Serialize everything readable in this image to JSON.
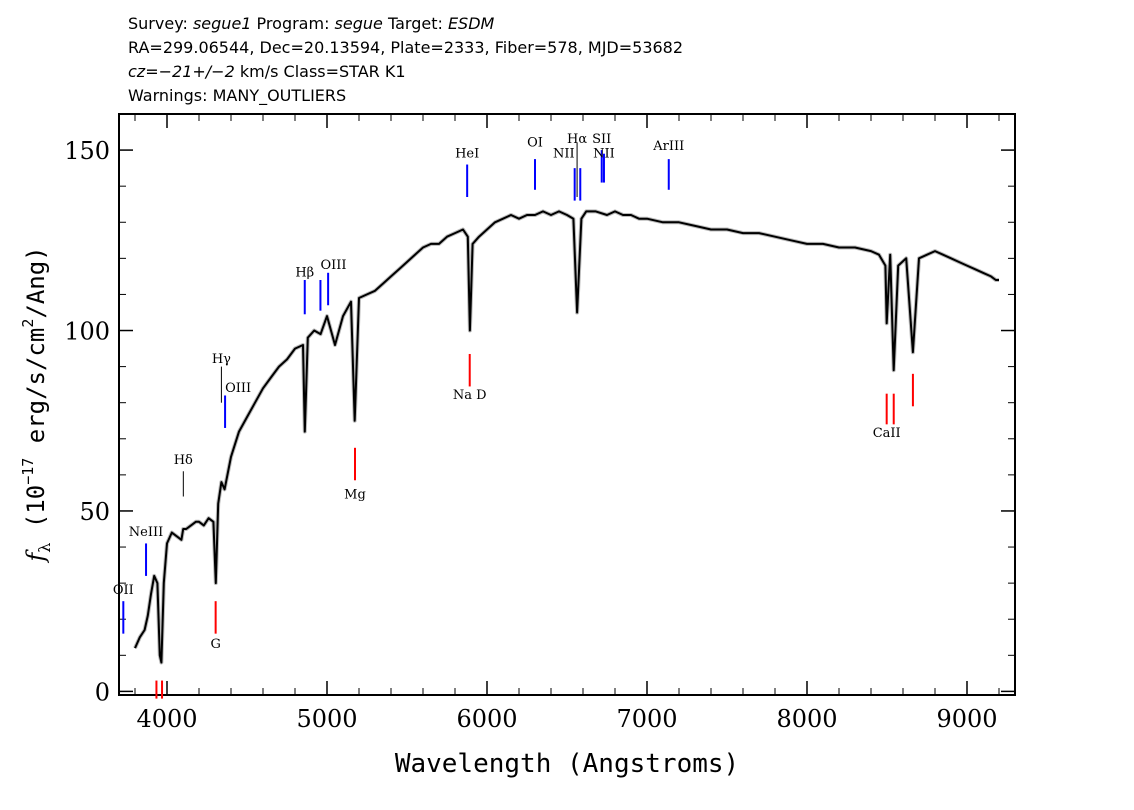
{
  "header": {
    "line1": {
      "survey_label": "Survey: ",
      "survey": "segue1",
      "program_label": " Program: ",
      "program": "segue",
      "target_label": " Target: ",
      "target": "ESDM"
    },
    "line2": "RA=299.06544, Dec=20.13594, Plate=2333, Fiber=578, MJD=53682",
    "line3": {
      "cz_label": "cz=",
      "cz_value": "−21+/−2",
      "cz_units": " km/s Class=STAR K1"
    },
    "line4": "Warnings: MANY_OUTLIERS"
  },
  "chart_data": {
    "type": "line",
    "xlabel": "Wavelength (Angstroms)",
    "ylabel": "fλ (10⁻¹⁷ erg/s/cm²/Ang)",
    "ylabel_parts": {
      "f": "f",
      "lambda": "λ",
      "pre": " (10",
      "exp1": "−17",
      "mid": " erg/s/cm",
      "exp2": "2",
      "post": "/Ang)"
    },
    "xlim": [
      3700,
      9300
    ],
    "ylim": [
      -1,
      160
    ],
    "xticks": [
      4000,
      5000,
      6000,
      7000,
      8000,
      9000
    ],
    "xtick_labels": [
      "4000",
      "5000",
      "6000",
      "7000",
      "8000",
      "9000"
    ],
    "yticks": [
      0,
      50,
      100,
      150
    ],
    "ytick_labels": [
      "0",
      "50",
      "100",
      "150"
    ],
    "grid": false,
    "series": [
      {
        "color": "#000000",
        "x": [
          3800,
          3830,
          3860,
          3880,
          3900,
          3920,
          3940,
          3955,
          3965,
          3980,
          4000,
          4030,
          4060,
          4090,
          4101,
          4120,
          4150,
          4180,
          4200,
          4230,
          4260,
          4290,
          4305,
          4320,
          4340,
          4360,
          4400,
          4450,
          4500,
          4550,
          4600,
          4650,
          4700,
          4750,
          4800,
          4850,
          4861,
          4880,
          4920,
          4960,
          5000,
          5050,
          5100,
          5150,
          5173,
          5200,
          5250,
          5300,
          5350,
          5400,
          5450,
          5500,
          5550,
          5600,
          5650,
          5700,
          5750,
          5800,
          5850,
          5880,
          5893,
          5910,
          5950,
          6000,
          6050,
          6100,
          6150,
          6200,
          6250,
          6300,
          6350,
          6400,
          6450,
          6500,
          6540,
          6563,
          6590,
          6620,
          6680,
          6750,
          6800,
          6850,
          6900,
          6950,
          7000,
          7100,
          7200,
          7300,
          7400,
          7500,
          7600,
          7700,
          7800,
          7900,
          8000,
          8100,
          8200,
          8300,
          8400,
          8450,
          8490,
          8498,
          8520,
          8542,
          8570,
          8620,
          8662,
          8700,
          8750,
          8800,
          8850,
          8900,
          8950,
          9000,
          9050,
          9100,
          9150,
          9180,
          9200
        ],
        "y": [
          12,
          15,
          17,
          21,
          27,
          32,
          30,
          10,
          8,
          30,
          41,
          44,
          43,
          42,
          45,
          45,
          46,
          47,
          47,
          46,
          48,
          47,
          30,
          52,
          58,
          56,
          65,
          72,
          76,
          80,
          84,
          87,
          90,
          92,
          95,
          96,
          72,
          98,
          100,
          99,
          104,
          96,
          104,
          108,
          75,
          109,
          110,
          111,
          113,
          115,
          117,
          119,
          121,
          123,
          124,
          124,
          126,
          127,
          128,
          126,
          100,
          124,
          126,
          128,
          130,
          131,
          132,
          131,
          132,
          132,
          133,
          132,
          133,
          132,
          131,
          105,
          131,
          133,
          133,
          132,
          133,
          132,
          132,
          131,
          131,
          130,
          130,
          129,
          128,
          128,
          127,
          127,
          126,
          125,
          124,
          124,
          123,
          123,
          122,
          121,
          118,
          102,
          121,
          89,
          118,
          120,
          94,
          120,
          121,
          122,
          121,
          120,
          119,
          118,
          117,
          116,
          115,
          114,
          114
        ]
      }
    ],
    "annotations": [
      {
        "label": "OII",
        "x": 3727,
        "color": "#0000ff",
        "y_top": 25,
        "y_bottom": 16,
        "label_y": 27,
        "label_anchor": "middle"
      },
      {
        "label": "NeIII",
        "x": 3869,
        "color": "#0000ff",
        "y_top": 41,
        "y_bottom": 32,
        "label_y": 43,
        "label_anchor": "middle"
      },
      {
        "label": "Hδ",
        "x": 4102,
        "color": "#000000",
        "y_top": 61,
        "y_bottom": 54,
        "label_y": 63,
        "label_anchor": "middle"
      },
      {
        "label": "Hγ",
        "x": 4340,
        "color": "#000000",
        "y_top": 90,
        "y_bottom": 80,
        "label_y": 91,
        "label_anchor": "middle"
      },
      {
        "label": "OIII",
        "x": 4363,
        "color": "#0000ff",
        "y_top": 82,
        "y_bottom": 73,
        "label_y": 83,
        "label_anchor": "start"
      },
      {
        "label": "Hβ",
        "x": 4861,
        "color": "#0000ff",
        "y_top": 114,
        "y_bottom": 104.5,
        "label_y": 115,
        "label_anchor": "middle"
      },
      {
        "label": "OIII",
        "x": 4959,
        "color": "#0000ff",
        "y_top": 114,
        "y_bottom": 105.5,
        "label_y": 117,
        "label_anchor": "start"
      },
      {
        "label": "",
        "x": 5007,
        "color": "#0000ff",
        "y_top": 116,
        "y_bottom": 107
      },
      {
        "label": "HeI",
        "x": 5876,
        "color": "#0000ff",
        "y_top": 146,
        "y_bottom": 137,
        "label_y": 148,
        "label_anchor": "middle"
      },
      {
        "label": "OI",
        "x": 6300,
        "color": "#0000ff",
        "y_top": 147.5,
        "y_bottom": 139,
        "label_y": 151,
        "label_anchor": "middle"
      },
      {
        "label": "NII",
        "x": 6548,
        "color": "#0000ff",
        "y_top": 145,
        "y_bottom": 136,
        "label_y": 148,
        "label_anchor": "end"
      },
      {
        "label": "Hα",
        "x": 6563,
        "color": "#000000",
        "y_top": 152,
        "y_bottom": 137,
        "label_y": 152,
        "label_anchor": "middle"
      },
      {
        "label": "NII",
        "x": 6583,
        "color": "#0000ff",
        "y_top": 145,
        "y_bottom": 136
      },
      {
        "label": "SII",
        "x": 6717,
        "color": "#0000ff",
        "y_top": 150,
        "y_bottom": 141,
        "label_y": 152,
        "label_anchor": "middle"
      },
      {
        "label": "NII",
        "x": 6731,
        "color": "#0000ff",
        "y_top": 149,
        "y_bottom": 141,
        "label_y": 148,
        "label_anchor": "middle"
      },
      {
        "label": "ArIII",
        "x": 7136,
        "color": "#0000ff",
        "y_top": 147.5,
        "y_bottom": 139,
        "label_y": 150,
        "label_anchor": "middle"
      },
      {
        "label": "Mg",
        "x": 5175,
        "color": "#ff0000",
        "y_top": 67.5,
        "y_bottom": 58.5,
        "label_y": 53.5,
        "label_anchor": "middle"
      },
      {
        "label": "Na D",
        "x": 5892,
        "color": "#ff0000",
        "y_top": 93.5,
        "y_bottom": 84.5,
        "label_y": 81,
        "label_anchor": "middle"
      },
      {
        "label": "G",
        "x": 4304,
        "color": "#ff0000",
        "y_top": 25,
        "y_bottom": 16,
        "label_y": 12,
        "label_anchor": "middle"
      },
      {
        "label": "",
        "x": 3934,
        "color": "#ff0000",
        "y_top": 3,
        "y_bottom": -2
      },
      {
        "label": "",
        "x": 3969,
        "color": "#ff0000",
        "y_top": 3,
        "y_bottom": -2
      },
      {
        "label": "CaII",
        "x": 8498,
        "color": "#ff0000",
        "y_top": 82.5,
        "y_bottom": 74,
        "label_y": 70.5,
        "label_anchor": "middle"
      },
      {
        "label": "",
        "x": 8542,
        "color": "#ff0000",
        "y_top": 82.5,
        "y_bottom": 74
      },
      {
        "label": "",
        "x": 8662,
        "color": "#ff0000",
        "y_top": 88,
        "y_bottom": 79
      }
    ]
  }
}
